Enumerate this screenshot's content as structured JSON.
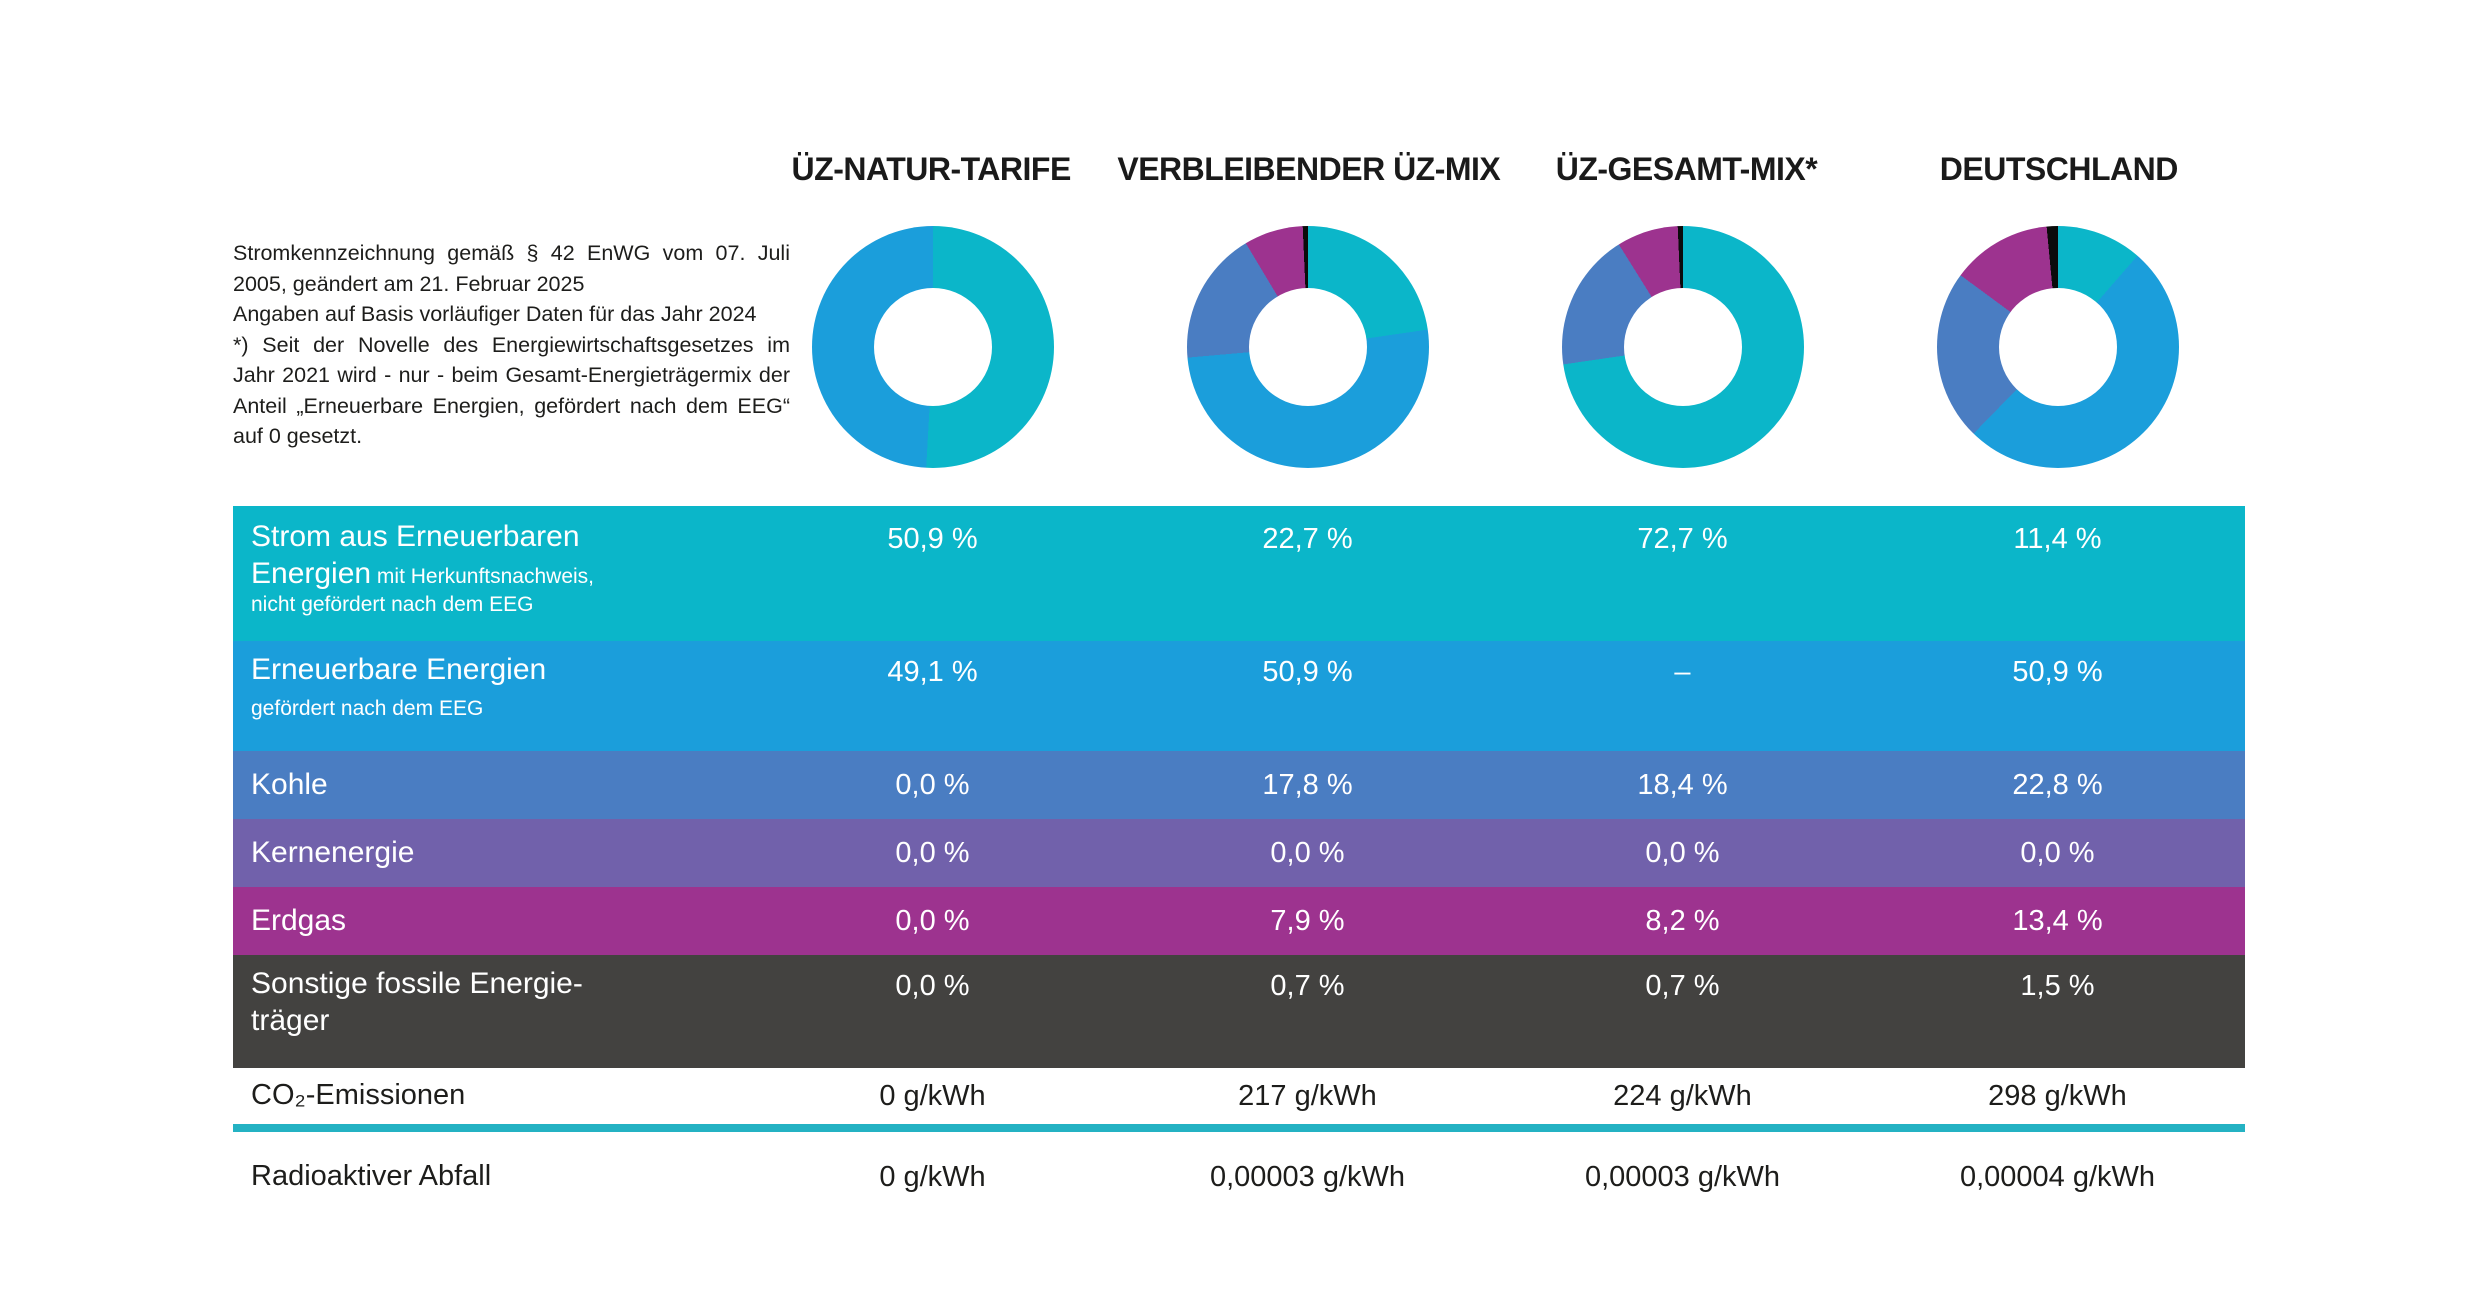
{
  "columns": [
    "ÜZ-NATUR-TARIFE",
    "VERBLEIBENDER ÜZ-MIX",
    "ÜZ-GESAMT-MIX*",
    "DEUTSCHLAND"
  ],
  "notes": {
    "paragraphs": [
      "Stromkennzeichnung gemäß § 42 EnWG vom 07. Juli 2005, geändert am 21. Februar 2025",
      "Angaben auf Basis vorläufiger Daten für das Jahr 2024",
      "*) Seit der Novelle des Energiewirtschaftsgesetzes im Jahr 2021 wird - nur - beim Gesamt-Energieträgermix der Anteil „Erneuerbare Energien, gefördert nach dem EEG“ auf 0 gesetzt."
    ]
  },
  "palette": {
    "teal": "#0bb6c9",
    "blue": "#1b9edb",
    "slate": "#4a7dc2",
    "purple": "#7161ab",
    "magenta": "#9d338f",
    "dark": "#434240",
    "black": "#0b0b0b",
    "divider_line": "#24b2c3",
    "text_dark": "#1d1d1b",
    "white": "#ffffff"
  },
  "table": {
    "rows": [
      {
        "main": "Strom aus Erneuerbaren\nEnergien",
        "sub": " mit Herkunftsnachweis,\nnicht gefördert nach dem EEG",
        "bg": "teal",
        "values": [
          "50,9 %",
          "22,7 %",
          "72,7 %",
          "11,4 %"
        ]
      },
      {
        "main": "Erneuerbare Energien",
        "sub": "gefördert nach dem EEG",
        "bg": "blue",
        "values": [
          "49,1 %",
          "50,9 %",
          "–",
          "50,9 %"
        ]
      },
      {
        "main": "Kohle",
        "bg": "slate",
        "values": [
          "0,0 %",
          "17,8 %",
          "18,4 %",
          "22,8 %"
        ]
      },
      {
        "main": "Kernenergie",
        "bg": "purple",
        "values": [
          "0,0 %",
          "0,0 %",
          "0,0 %",
          "0,0 %"
        ]
      },
      {
        "main": "Erdgas",
        "bg": "magenta",
        "values": [
          "0,0 %",
          "7,9 %",
          "8,2 %",
          "13,4 %"
        ]
      },
      {
        "main": "Sonstige fossile Energie-\nträger",
        "bg": "dark",
        "values": [
          "0,0 %",
          "0,7 %",
          "0,7 %",
          "1,5 %"
        ]
      },
      {
        "main": "CO₂-Emissionen",
        "bg": "white",
        "values": [
          "0 g/kWh",
          "217 g/kWh",
          "224 g/kWh",
          "298 g/kWh"
        ]
      },
      {
        "main": "Radioaktiver Abfall",
        "bg": "white",
        "values": [
          "0 g/kWh",
          "0,00003 g/kWh",
          "0,00003 g/kWh",
          "0,00004 g/kWh"
        ]
      }
    ]
  },
  "chart_data": [
    {
      "type": "pie",
      "title": "ÜZ-NATUR-TARIFE",
      "labels": [
        "Strom aus Erneuerbaren Energien mit Herkunftsnachweis, nicht gefördert nach dem EEG",
        "Erneuerbare Energien gefördert nach dem EEG",
        "Kohle",
        "Kernenergie",
        "Erdgas",
        "Sonstige fossile Energieträger"
      ],
      "values": [
        50.9,
        49.1,
        0.0,
        0.0,
        0.0,
        0.0
      ],
      "colors": [
        "#0bb6c9",
        "#1b9edb",
        "#4a7dc2",
        "#7161ab",
        "#9d338f",
        "#0b0b0b"
      ],
      "donut": true
    },
    {
      "type": "pie",
      "title": "VERBLEIBENDER ÜZ-MIX",
      "labels": [
        "Strom aus Erneuerbaren Energien mit Herkunftsnachweis, nicht gefördert nach dem EEG",
        "Erneuerbare Energien gefördert nach dem EEG",
        "Kohle",
        "Kernenergie",
        "Erdgas",
        "Sonstige fossile Energieträger"
      ],
      "values": [
        22.7,
        50.9,
        17.8,
        0.0,
        7.9,
        0.7
      ],
      "colors": [
        "#0bb6c9",
        "#1b9edb",
        "#4a7dc2",
        "#7161ab",
        "#9d338f",
        "#0b0b0b"
      ],
      "donut": true
    },
    {
      "type": "pie",
      "title": "ÜZ-GESAMT-MIX*",
      "labels": [
        "Strom aus Erneuerbaren Energien mit Herkunftsnachweis, nicht gefördert nach dem EEG",
        "Erneuerbare Energien gefördert nach dem EEG",
        "Kohle",
        "Kernenergie",
        "Erdgas",
        "Sonstige fossile Energieträger"
      ],
      "values": [
        72.7,
        0.0,
        18.4,
        0.0,
        8.2,
        0.7
      ],
      "colors": [
        "#0bb6c9",
        "#1b9edb",
        "#4a7dc2",
        "#7161ab",
        "#9d338f",
        "#0b0b0b"
      ],
      "donut": true
    },
    {
      "type": "pie",
      "title": "DEUTSCHLAND",
      "labels": [
        "Strom aus Erneuerbaren Energien mit Herkunftsnachweis, nicht gefördert nach dem EEG",
        "Erneuerbare Energien gefördert nach dem EEG",
        "Kohle",
        "Kernenergie",
        "Erdgas",
        "Sonstige fossile Energieträger"
      ],
      "values": [
        11.4,
        50.9,
        22.8,
        0.0,
        13.4,
        1.5
      ],
      "colors": [
        "#0bb6c9",
        "#1b9edb",
        "#4a7dc2",
        "#7161ab",
        "#9d338f",
        "#0b0b0b"
      ],
      "donut": true
    }
  ]
}
